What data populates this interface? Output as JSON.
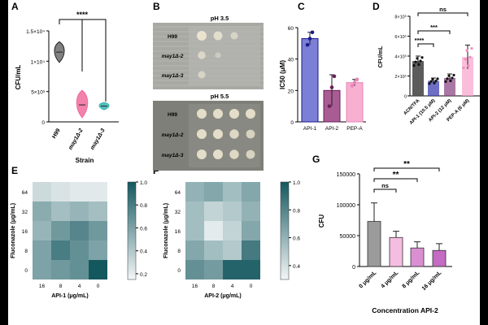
{
  "figure": {
    "panel_letters": [
      "A",
      "B",
      "C",
      "D",
      "E",
      "F",
      "G"
    ]
  },
  "chart_data": [
    {
      "panel": "A",
      "type": "violin",
      "ylabel": "CFU/mL",
      "xlabel": "Strain",
      "categories": [
        "H99",
        "may1Δ-2",
        "may1Δ-3"
      ],
      "values": [
        11500,
        2800,
        2600
      ],
      "ranges": [
        [
          9800,
          13200
        ],
        [
          700,
          5200
        ],
        [
          2000,
          3200
        ]
      ],
      "colors": [
        "#6b6b6b",
        "#f06b9c",
        "#36b5b2"
      ],
      "yticks": [
        "0",
        "5×10³",
        "1×10⁴",
        "1.5×10⁴"
      ],
      "ytick_values": [
        0,
        5000,
        10000,
        15000
      ],
      "ylim": [
        0,
        15000
      ],
      "significance": [
        "****"
      ]
    },
    {
      "panel": "B",
      "type": "image",
      "plates": [
        {
          "title": "pH 3.5",
          "rows": [
            "H99",
            "may1Δ-2",
            "may1Δ-3"
          ]
        },
        {
          "title": "pH 5.5",
          "rows": [
            "H99",
            "may1Δ-2",
            "may1Δ-3"
          ]
        }
      ]
    },
    {
      "panel": "C",
      "type": "bar",
      "ylabel": "IC50 (μM)",
      "categories": [
        "API-1",
        "API-2",
        "PEP-A"
      ],
      "values": [
        53,
        20,
        25
      ],
      "errors": [
        4,
        10,
        2
      ],
      "points": [
        [
          49,
          53,
          57
        ],
        [
          10,
          22,
          29
        ],
        [
          23,
          25,
          27
        ]
      ],
      "colors": [
        "#7b7fd6",
        "#a85c93",
        "#f7b0d0"
      ],
      "edge_colors": [
        "#1a1a8c",
        "#6b1f5a",
        "#e985b8"
      ],
      "yticks": [
        0,
        20,
        40,
        60
      ],
      "ylim": [
        0,
        60
      ]
    },
    {
      "panel": "D",
      "type": "bar",
      "ylabel": "CFU/mL",
      "categories": [
        "ACN/TFA",
        "API-1 (10.5 μM)",
        "API-2 (12 μM)",
        "PEP-A (6 μM)"
      ],
      "values": [
        350000,
        150000,
        180000,
        390000
      ],
      "errors": [
        50000,
        30000,
        40000,
        120000
      ],
      "colors": [
        "#4a4a4a",
        "#3d3fb0",
        "#8e4a85",
        "#f8a8cf"
      ],
      "yticks": [
        "0",
        "2×10⁵",
        "4×10⁵",
        "6×10⁵",
        "8×10⁵"
      ],
      "ytick_values": [
        0,
        200000,
        400000,
        600000,
        800000
      ],
      "ylim": [
        0,
        800000
      ],
      "significance": [
        "****",
        "***",
        "ns"
      ]
    },
    {
      "panel": "E",
      "type": "heatmap",
      "xlabel": "API-1 (μg/mL)",
      "ylabel": "Fluconazole (μg/mL)",
      "x": [
        "16",
        "8",
        "4",
        "0"
      ],
      "y": [
        "64",
        "32",
        "16",
        "8",
        "0"
      ],
      "values": [
        [
          0.3,
          0.25,
          0.22,
          0.22
        ],
        [
          0.55,
          0.45,
          0.5,
          0.45
        ],
        [
          0.5,
          0.65,
          0.75,
          0.65
        ],
        [
          0.6,
          0.8,
          0.7,
          0.6
        ],
        [
          0.6,
          0.65,
          0.7,
          1.0
        ]
      ],
      "colorbar_ticks": [
        "0.2",
        "0.4",
        "0.6",
        "0.8",
        "1.0"
      ],
      "vmin": 0.15,
      "vmax": 1.0
    },
    {
      "panel": "F",
      "type": "heatmap",
      "xlabel": "API-2 (μg/mL)",
      "ylabel": "Fluconazole (μg/mL)",
      "x": [
        "16",
        "8",
        "4",
        "0"
      ],
      "y": [
        "64",
        "32",
        "16",
        "8",
        "0"
      ],
      "values": [
        [
          0.6,
          0.65,
          0.55,
          0.65
        ],
        [
          0.55,
          0.45,
          0.5,
          0.6
        ],
        [
          0.55,
          0.35,
          0.45,
          0.65
        ],
        [
          0.65,
          0.55,
          0.5,
          0.85
        ],
        [
          0.75,
          0.7,
          0.95,
          0.95
        ]
      ],
      "colorbar_ticks": [
        "0.4",
        "0.6",
        "0.8",
        "1.0"
      ],
      "vmin": 0.3,
      "vmax": 1.0
    },
    {
      "panel": "G",
      "type": "bar",
      "ylabel": "CFU",
      "xlabel": "Concentration API-2",
      "categories": [
        "0 μg/mL",
        "4 μg/mL",
        "8 μg/mL",
        "16 μg/mL"
      ],
      "values": [
        73000,
        47000,
        30000,
        26000
      ],
      "errors": [
        30000,
        10000,
        10000,
        11000
      ],
      "colors": [
        "#9b9b9b",
        "#f5bde0",
        "#d98fd2",
        "#c46bc3"
      ],
      "yticks": [
        "0",
        "50000",
        "100000",
        "150000"
      ],
      "ytick_values": [
        0,
        50000,
        100000,
        150000
      ],
      "ylim": [
        0,
        150000
      ],
      "significance": [
        "ns",
        "**",
        "**"
      ]
    }
  ]
}
